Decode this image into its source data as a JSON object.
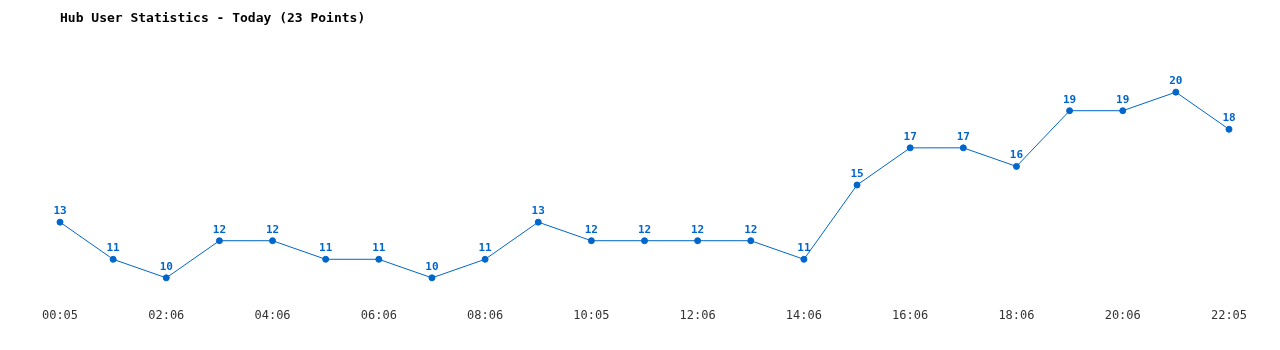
{
  "chart_data": {
    "type": "line",
    "title": "Hub User Statistics - Today (23 Points)",
    "categories": [
      "00:05",
      null,
      "02:06",
      null,
      "04:06",
      null,
      "06:06",
      null,
      "08:06",
      null,
      "10:05",
      null,
      "12:06",
      null,
      "14:06",
      null,
      "16:06",
      null,
      "18:06",
      null,
      "20:06",
      null,
      "22:05"
    ],
    "series": [
      {
        "color": "#0066cc",
        "values": [
          13,
          11,
          10,
          12,
          12,
          11,
          11,
          10,
          11,
          13,
          12,
          12,
          12,
          12,
          11,
          15,
          17,
          17,
          16,
          19,
          19,
          20,
          18
        ]
      }
    ],
    "data_labels": true,
    "marker": "circle",
    "grid": false,
    "legend": false
  }
}
